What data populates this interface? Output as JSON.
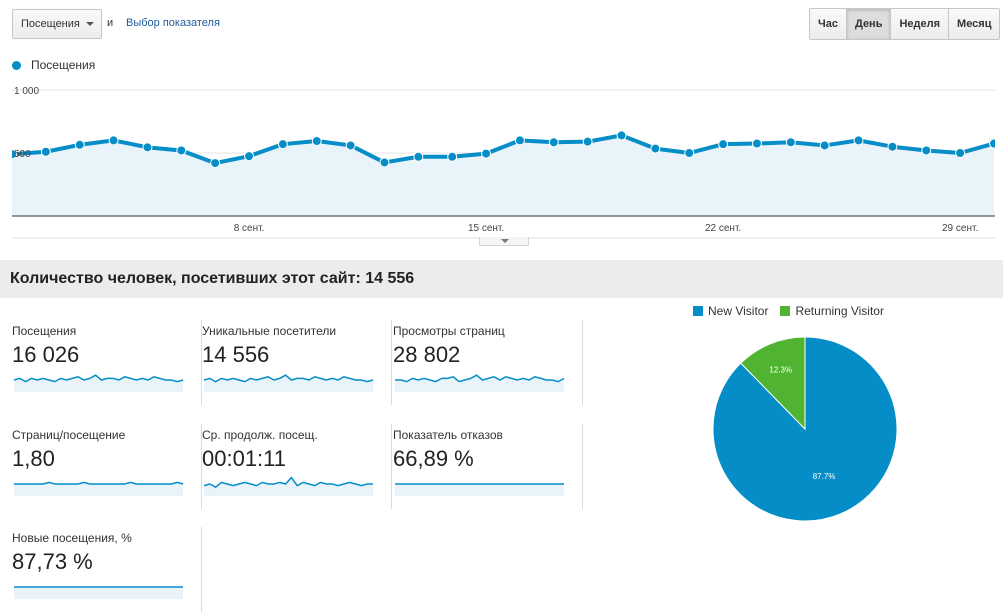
{
  "toolbar": {
    "metric_select": "Посещения",
    "and_text": "и",
    "choose_metric_link": "Выбор показателя",
    "ranges": [
      "Час",
      "День",
      "Неделя",
      "Месяц"
    ],
    "active_range": "День"
  },
  "chart_legend": {
    "label": "Посещения",
    "color": "#058dc7"
  },
  "chart_data": [
    {
      "type": "area",
      "title": "",
      "series": [
        {
          "name": "Посещения",
          "values": [
            490,
            510,
            565,
            600,
            545,
            520,
            420,
            475,
            570,
            595,
            560,
            425,
            470,
            470,
            495,
            600,
            585,
            590,
            640,
            535,
            500,
            570,
            575,
            585,
            560,
            600,
            550,
            520,
            500,
            575
          ]
        }
      ],
      "x_tick_labels": [
        "8 сент.",
        "15 сент.",
        "22 сент.",
        "29 сент."
      ],
      "x_tick_indices": [
        7,
        14,
        21,
        28
      ],
      "y_tick_labels": [
        "1 000",
        "500"
      ],
      "y_ticks": [
        1000,
        500
      ],
      "ylim": [
        0,
        1000
      ]
    },
    {
      "type": "pie",
      "categories": [
        "New Visitor",
        "Returning Visitor"
      ],
      "values": [
        87.7,
        12.3
      ],
      "labels": [
        "87.7%",
        "12.3%"
      ],
      "colors": [
        "#058dc7",
        "#50b432"
      ]
    }
  ],
  "summary": {
    "title": "Количество человек, посетивших этот сайт: 14 556"
  },
  "tiles": [
    {
      "label": "Посещения",
      "value": "16 026",
      "spark": [
        5,
        6,
        4,
        6,
        5,
        6,
        5,
        4,
        6,
        5,
        6,
        7,
        5,
        6,
        8,
        5,
        6,
        6,
        5,
        7,
        6,
        5,
        6,
        5,
        7,
        6,
        5,
        5,
        4,
        5
      ]
    },
    {
      "label": "Уникальные посетители",
      "value": "14 556",
      "spark": [
        5,
        6,
        4,
        6,
        5,
        6,
        5,
        4,
        6,
        5,
        6,
        7,
        5,
        6,
        8,
        5,
        6,
        6,
        5,
        7,
        6,
        5,
        6,
        5,
        7,
        6,
        5,
        5,
        4,
        5
      ]
    },
    {
      "label": "Просмотры страниц",
      "value": "28 802",
      "spark": [
        5,
        5,
        4,
        6,
        5,
        6,
        5,
        4,
        6,
        6,
        7,
        4,
        5,
        6,
        8,
        5,
        6,
        7,
        5,
        7,
        6,
        5,
        6,
        5,
        7,
        6,
        5,
        5,
        4,
        6
      ]
    },
    {
      "label": "Страниц/посещение",
      "value": "1,80",
      "spark": [
        5,
        5,
        5,
        5,
        5,
        5,
        6,
        5,
        5,
        5,
        5,
        5,
        6,
        5,
        5,
        5,
        5,
        5,
        5,
        5,
        6,
        5,
        5,
        5,
        5,
        5,
        5,
        5,
        6,
        5
      ]
    },
    {
      "label": "Ср. продолж. посещ.",
      "value": "00:01:11",
      "spark": [
        4,
        5,
        3,
        6,
        5,
        4,
        5,
        6,
        5,
        4,
        6,
        5,
        5,
        6,
        5,
        9,
        4,
        6,
        5,
        4,
        6,
        5,
        5,
        4,
        5,
        6,
        5,
        4,
        5,
        5
      ]
    },
    {
      "label": "Показатель отказов",
      "value": "66,89 %",
      "spark": [
        5,
        5,
        5,
        5,
        5,
        5,
        5,
        5,
        5,
        5,
        5,
        5,
        5,
        5,
        5,
        5,
        5,
        5,
        5,
        5,
        5,
        5,
        5,
        5,
        5,
        5,
        5,
        5,
        5,
        5
      ]
    },
    {
      "label": "Новые посещения, %",
      "value": "87,73 %",
      "spark": [
        5,
        5,
        5,
        5,
        5,
        5,
        5,
        5,
        5,
        5,
        5,
        5,
        5,
        5,
        5,
        5,
        5,
        5,
        5,
        5,
        5,
        5,
        5,
        5,
        5,
        5,
        5,
        5,
        5,
        5
      ]
    }
  ]
}
